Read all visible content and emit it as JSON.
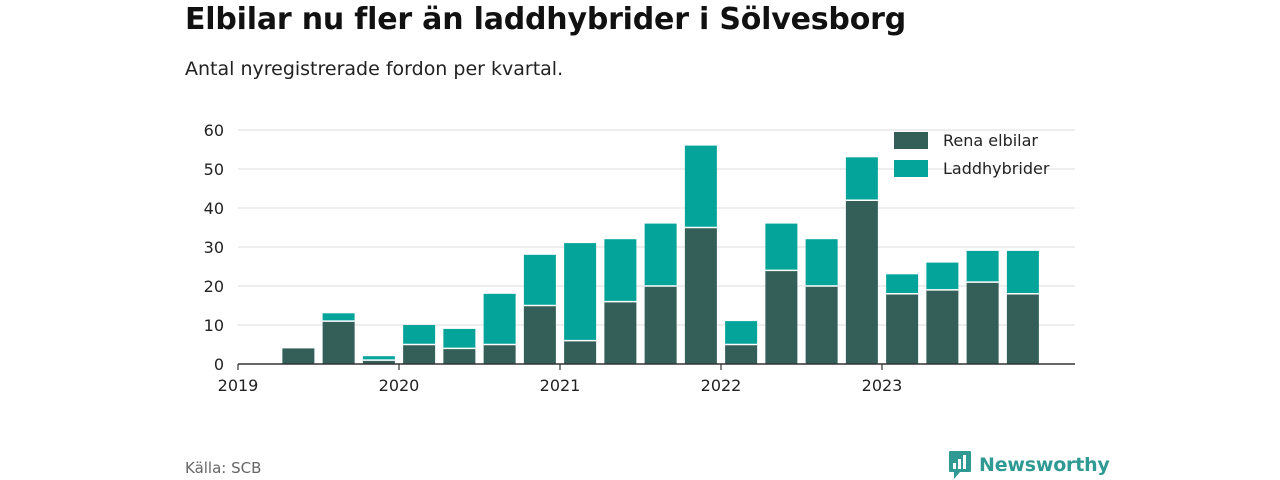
{
  "title": "Elbilar nu fler än laddhybrider i Sölvesborg",
  "subtitle": "Antal nyregistrerade fordon per kvartal.",
  "source": "Källa: SCB",
  "brand": "Newsworthy",
  "colors": {
    "rena_elbilar": "#335f58",
    "laddhybrider": "#05a49b",
    "grid": "#dddddd",
    "axis": "#333333",
    "brand": "#2f9a93"
  },
  "chart_data": {
    "type": "bar",
    "stacked": true,
    "categories": [
      "2019 Q1",
      "2019 Q2",
      "2019 Q3",
      "2019 Q4",
      "2020 Q1",
      "2020 Q2",
      "2020 Q3",
      "2020 Q4",
      "2021 Q1",
      "2021 Q2",
      "2021 Q3",
      "2021 Q4",
      "2022 Q1",
      "2022 Q2",
      "2022 Q3",
      "2022 Q4",
      "2023 Q1",
      "2023 Q2",
      "2023 Q3",
      "2023 Q4"
    ],
    "series": [
      {
        "name": "Rena elbilar",
        "values": [
          0,
          4,
          11,
          1,
          5,
          4,
          5,
          15,
          6,
          16,
          20,
          35,
          5,
          24,
          20,
          42,
          18,
          19,
          21,
          18
        ]
      },
      {
        "name": "Laddhybrider",
        "values": [
          0,
          0,
          2,
          1,
          5,
          5,
          13,
          13,
          25,
          16,
          16,
          21,
          6,
          12,
          12,
          11,
          5,
          7,
          8,
          11
        ]
      }
    ],
    "x_tick_labels": [
      "2019",
      "2020",
      "2021",
      "2022",
      "2023"
    ],
    "y_ticks": [
      0,
      10,
      20,
      30,
      40,
      50,
      60
    ],
    "ylim": [
      0,
      60
    ],
    "legend_position": "top-right",
    "grid": true
  }
}
